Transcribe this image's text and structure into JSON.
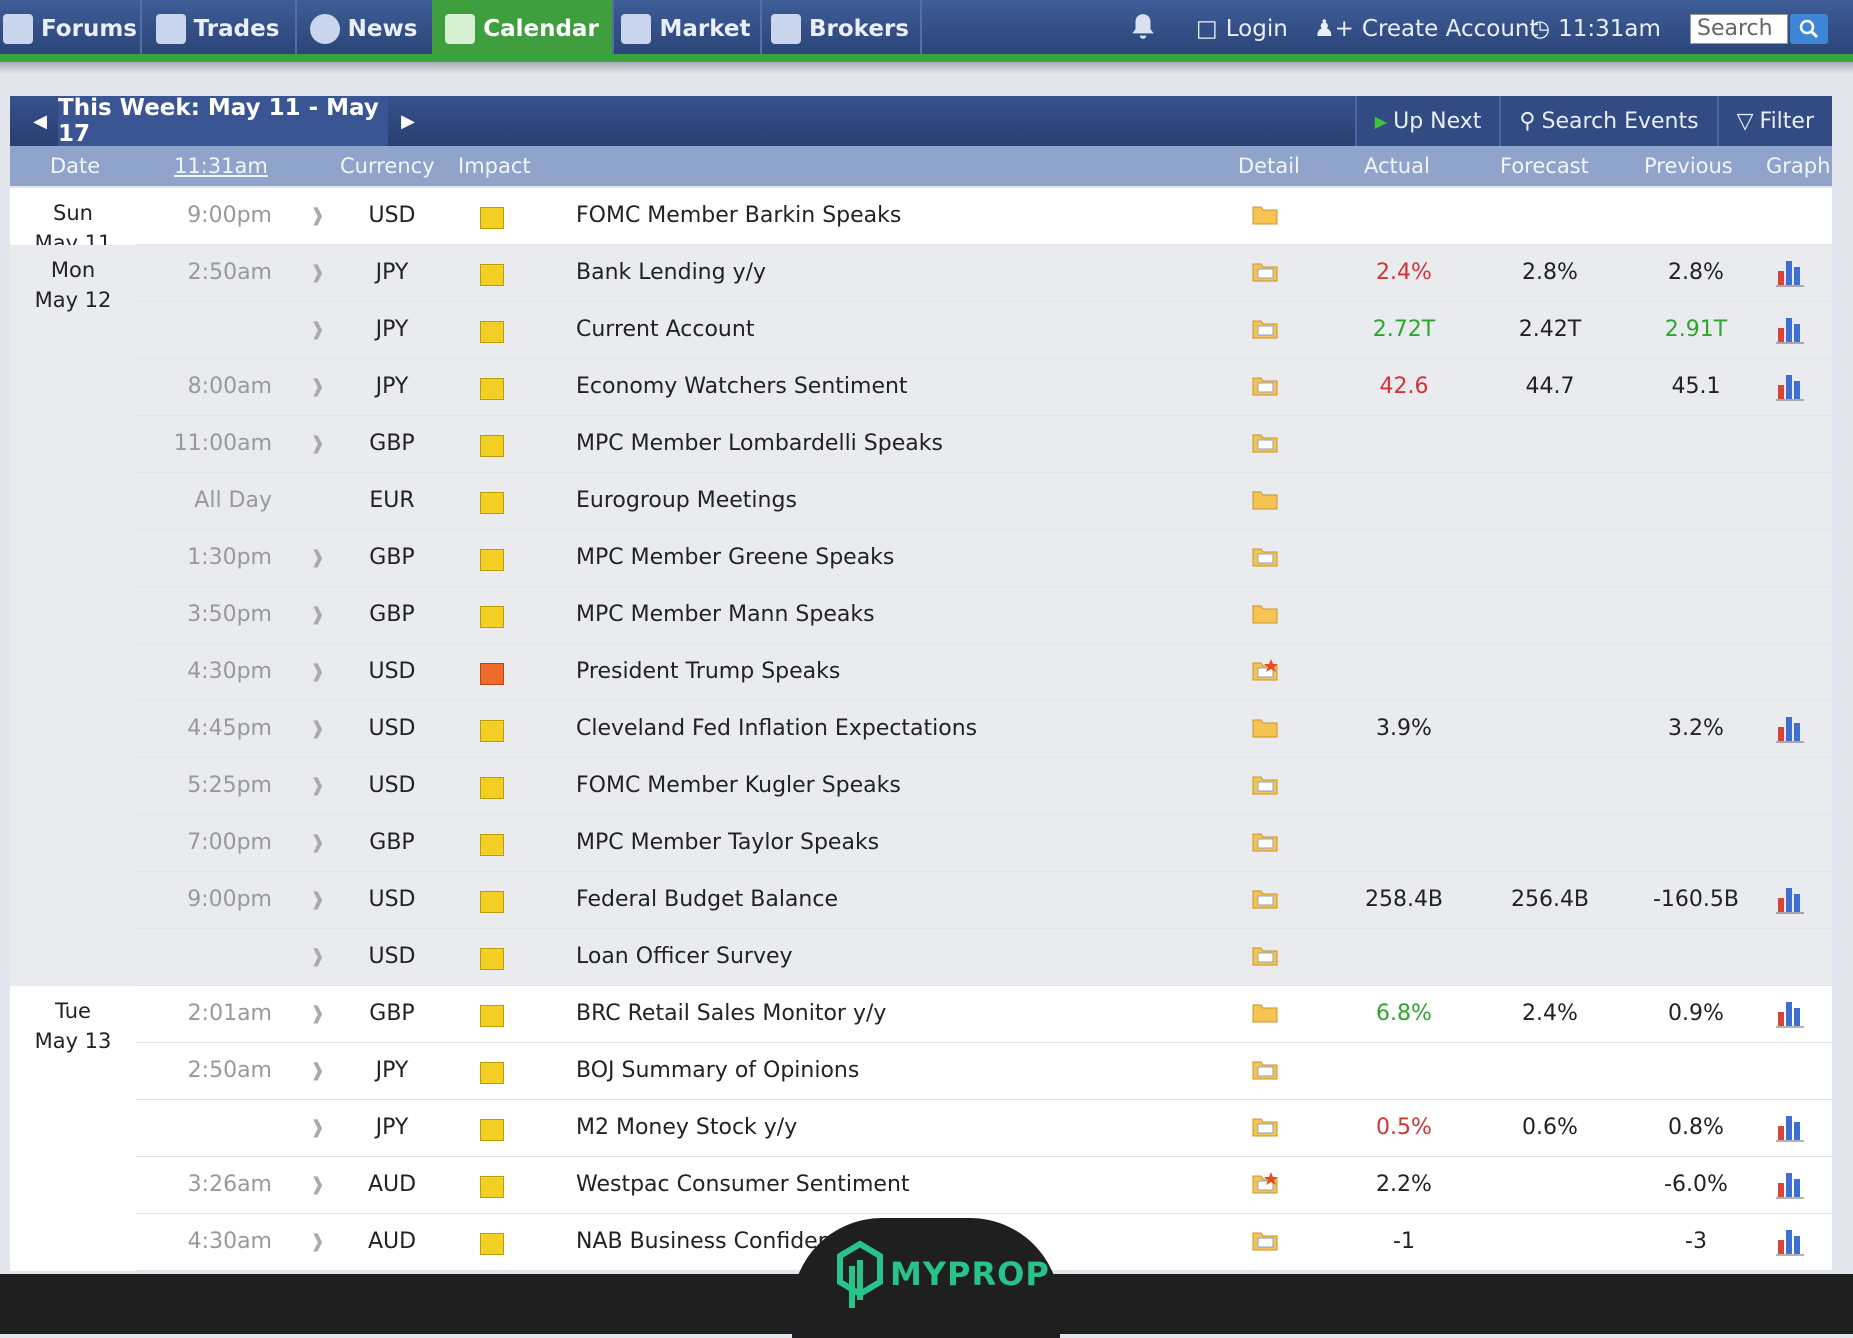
{
  "nav": {
    "tabs": [
      {
        "label": "Forums",
        "icon": "chat-icon"
      },
      {
        "label": "Trades",
        "icon": "trades-icon"
      },
      {
        "label": "News",
        "icon": "globe-icon"
      },
      {
        "label": "Calendar",
        "icon": "calendar-icon",
        "active": true
      },
      {
        "label": "Market",
        "icon": "chart-icon"
      },
      {
        "label": "Brokers",
        "icon": "brokers-icon"
      }
    ],
    "login": "Login",
    "create_account": "Create Account",
    "time": "11:31am",
    "search_placeholder": "Search"
  },
  "week": {
    "label": "This Week: May 11 - May 17",
    "up_next": "Up Next",
    "search_events": "Search Events",
    "filter": "Filter"
  },
  "columns": {
    "date": "Date",
    "time": "11:31am",
    "currency": "Currency",
    "impact": "Impact",
    "detail": "Detail",
    "actual": "Actual",
    "forecast": "Forecast",
    "previous": "Previous",
    "graph": "Graph"
  },
  "days": [
    {
      "weekday": "Sun",
      "date": "May 11"
    },
    {
      "weekday": "Mon",
      "date": "May 12"
    },
    {
      "weekday": "Tue",
      "date": "May 13"
    }
  ],
  "events": [
    {
      "time": "9:00pm",
      "currency": "USD",
      "impact": "low",
      "event": "FOMC Member Barkin Speaks",
      "actual": "",
      "forecast": "",
      "previous": ""
    },
    {
      "time": "2:50am",
      "currency": "JPY",
      "impact": "low",
      "event": "Bank Lending y/y",
      "actual": "2.4%",
      "forecast": "2.8%",
      "previous": "2.8%"
    },
    {
      "time": "",
      "currency": "JPY",
      "impact": "low",
      "event": "Current Account",
      "actual": "2.72T",
      "forecast": "2.42T",
      "previous": "2.91T"
    },
    {
      "time": "8:00am",
      "currency": "JPY",
      "impact": "low",
      "event": "Economy Watchers Sentiment",
      "actual": "42.6",
      "forecast": "44.7",
      "previous": "45.1"
    },
    {
      "time": "11:00am",
      "currency": "GBP",
      "impact": "low",
      "event": "MPC Member Lombardelli Speaks",
      "actual": "",
      "forecast": "",
      "previous": ""
    },
    {
      "time": "All Day",
      "currency": "EUR",
      "impact": "low",
      "event": "Eurogroup Meetings",
      "actual": "",
      "forecast": "",
      "previous": ""
    },
    {
      "time": "1:30pm",
      "currency": "GBP",
      "impact": "low",
      "event": "MPC Member Greene Speaks",
      "actual": "",
      "forecast": "",
      "previous": ""
    },
    {
      "time": "3:50pm",
      "currency": "GBP",
      "impact": "low",
      "event": "MPC Member Mann Speaks",
      "actual": "",
      "forecast": "",
      "previous": ""
    },
    {
      "time": "4:30pm",
      "currency": "USD",
      "impact": "high",
      "event": "President Trump Speaks",
      "actual": "",
      "forecast": "",
      "previous": ""
    },
    {
      "time": "4:45pm",
      "currency": "USD",
      "impact": "low",
      "event": "Cleveland Fed Inflation Expectations",
      "actual": "3.9%",
      "forecast": "",
      "previous": "3.2%"
    },
    {
      "time": "5:25pm",
      "currency": "USD",
      "impact": "low",
      "event": "FOMC Member Kugler Speaks",
      "actual": "",
      "forecast": "",
      "previous": ""
    },
    {
      "time": "7:00pm",
      "currency": "GBP",
      "impact": "low",
      "event": "MPC Member Taylor Speaks",
      "actual": "",
      "forecast": "",
      "previous": ""
    },
    {
      "time": "9:00pm",
      "currency": "USD",
      "impact": "low",
      "event": "Federal Budget Balance",
      "actual": "258.4B",
      "forecast": "256.4B",
      "previous": "-160.5B"
    },
    {
      "time": "",
      "currency": "USD",
      "impact": "low",
      "event": "Loan Officer Survey",
      "actual": "",
      "forecast": "",
      "previous": ""
    },
    {
      "time": "2:01am",
      "currency": "GBP",
      "impact": "low",
      "event": "BRC Retail Sales Monitor y/y",
      "actual": "6.8%",
      "forecast": "2.4%",
      "previous": "0.9%"
    },
    {
      "time": "2:50am",
      "currency": "JPY",
      "impact": "low",
      "event": "BOJ Summary of Opinions",
      "actual": "",
      "forecast": "",
      "previous": ""
    },
    {
      "time": "",
      "currency": "JPY",
      "impact": "low",
      "event": "M2 Money Stock y/y",
      "actual": "0.5%",
      "forecast": "0.6%",
      "previous": "0.8%"
    },
    {
      "time": "3:26am",
      "currency": "AUD",
      "impact": "low",
      "event": "Westpac Consumer Sentiment",
      "actual": "2.2%",
      "forecast": "",
      "previous": "-6.0%"
    },
    {
      "time": "4:30am",
      "currency": "AUD",
      "impact": "low",
      "event": "NAB Business Confidence",
      "actual": "-1",
      "forecast": "",
      "previous": "-3"
    }
  ],
  "watermark": {
    "text": "MYPROP"
  },
  "colors": {
    "nav_blue": "#2f4a80",
    "accent_green": "#36a33c",
    "negative": "#d23333",
    "positive": "#2ea52e",
    "impact_low": "#f3d023",
    "impact_high": "#ef6b2a"
  }
}
